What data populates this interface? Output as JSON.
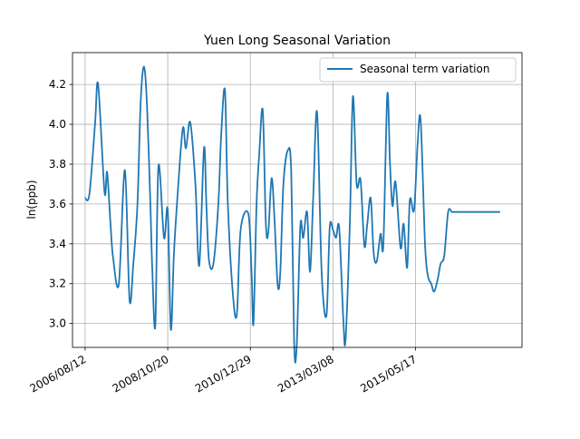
{
  "chart_data": {
    "type": "line",
    "title": "Yuen Long Seasonal Variation",
    "xlabel": "",
    "ylabel": "ln(ppb)",
    "grid": true,
    "legend_position": "upper-right",
    "line_color": "#1f77b4",
    "xlim": [
      "2006/04/12",
      "2018/03/12"
    ],
    "ylim": [
      2.88,
      4.36
    ],
    "x_ticks": [
      "2006/08/12",
      "2008/10/20",
      "2010/12/29",
      "2013/03/08",
      "2015/05/17"
    ],
    "y_ticks": [
      "3.0",
      "3.2",
      "3.4",
      "3.6",
      "3.8",
      "4.0",
      "4.2"
    ],
    "series": [
      {
        "name": "Seasonal term variation",
        "x": [
          "2006/08/12",
          "2006/09/23",
          "2006/11/16",
          "2006/12/16",
          "2007/02/16",
          "2007/03/13",
          "2007/04/15",
          "2007/05/10",
          "2007/07/05",
          "2007/09/01",
          "2007/10/16",
          "2007/11/22",
          "2008/01/01",
          "2008/01/31",
          "2008/03/03",
          "2008/04/02",
          "2008/05/05",
          "2008/05/23",
          "2008/06/22",
          "2008/07/22",
          "2008/09/14",
          "2008/10/20",
          "2008/11/19",
          "2008/12/19",
          "2009/01/24",
          "2009/03/15",
          "2009/04/14",
          "2009/05/26",
          "2009/07/15",
          "2009/08/21",
          "2009/10/06",
          "2009/10/29",
          "2009/11/23",
          "2010/01/05",
          "2010/02/22",
          "2010/03/22",
          "2010/04/27",
          "2010/05/25",
          "2010/07/14",
          "2010/08/21",
          "2010/09/26",
          "2010/12/10",
          "2011/01/10",
          "2011/01/28",
          "2011/02/27",
          "2011/03/25",
          "2011/04/28",
          "2011/05/28",
          "2011/06/21",
          "2011/07/23",
          "2011/08/22",
          "2011/09/20",
          "2011/10/15",
          "2011/11/14",
          "2011/12/27",
          "2012/01/29",
          "2012/02/26",
          "2012/03/22",
          "2012/04/26",
          "2012/05/24",
          "2012/06/30",
          "2012/07/29",
          "2012/08/29",
          "2012/10/05",
          "2012/11/18",
          "2013/01/04",
          "2013/02/04",
          "2013/03/08",
          "2013/04/07",
          "2013/05/07",
          "2013/06/16",
          "2013/07/08",
          "2013/08/18",
          "2013/09/17",
          "2013/10/23",
          "2013/11/30",
          "2014/01/06",
          "2014/02/03",
          "2014/03/08",
          "2014/04/05",
          "2014/05/05",
          "2014/06/12",
          "2014/07/09",
          "2014/08/16",
          "2014/09/11",
          "2014/10/05",
          "2014/11/04",
          "2014/12/22",
          "2015/01/21",
          "2015/02/24",
          "2015/03/22",
          "2015/05/02",
          "2015/06/05",
          "2015/07/05",
          "2015/08/16",
          "2015/09/13",
          "2015/10/15",
          "2015/11/12",
          "2015/12/16",
          "2016/01/14",
          "2016/02/18",
          "2016/03/27",
          "2016/05/03",
          "2016/06/08",
          "2016/07/08",
          "2016/08/06",
          "2016/09/05",
          "2016/10/15",
          "2016/11/18",
          "2016/12/20",
          "2017/02/13",
          "2017/03/30",
          "2017/05/05",
          "2017/06/15",
          "2017/08/12"
        ],
        "y": [
          3.63,
          3.65,
          4.0,
          4.2,
          3.66,
          3.76,
          3.5,
          3.33,
          3.2,
          3.77,
          3.12,
          3.3,
          3.6,
          4.1,
          4.29,
          4.1,
          3.6,
          3.28,
          2.99,
          3.79,
          3.43,
          3.57,
          2.97,
          3.35,
          3.65,
          3.98,
          3.88,
          4.01,
          3.7,
          3.29,
          3.88,
          3.6,
          3.32,
          3.3,
          3.6,
          3.95,
          4.17,
          3.6,
          3.14,
          3.05,
          3.47,
          3.55,
          3.25,
          3.0,
          3.6,
          3.85,
          4.07,
          3.5,
          3.46,
          3.73,
          3.5,
          3.19,
          3.26,
          3.7,
          3.87,
          3.76,
          2.9,
          2.89,
          3.49,
          3.43,
          3.56,
          3.26,
          3.64,
          4.06,
          3.26,
          3.04,
          3.48,
          3.47,
          3.43,
          3.48,
          3.02,
          2.92,
          3.5,
          4.14,
          3.7,
          3.72,
          3.39,
          3.5,
          3.63,
          3.36,
          3.31,
          3.45,
          3.4,
          4.15,
          3.8,
          3.59,
          3.71,
          3.38,
          3.5,
          3.28,
          3.62,
          3.57,
          3.9,
          4.02,
          3.4,
          3.24,
          3.2,
          3.16,
          3.22,
          3.3,
          3.34,
          3.56,
          3.56,
          3.56,
          3.56,
          3.56,
          3.56,
          3.56,
          3.56,
          3.56,
          3.56,
          3.56,
          3.56,
          3.56,
          3.56
        ]
      }
    ]
  }
}
